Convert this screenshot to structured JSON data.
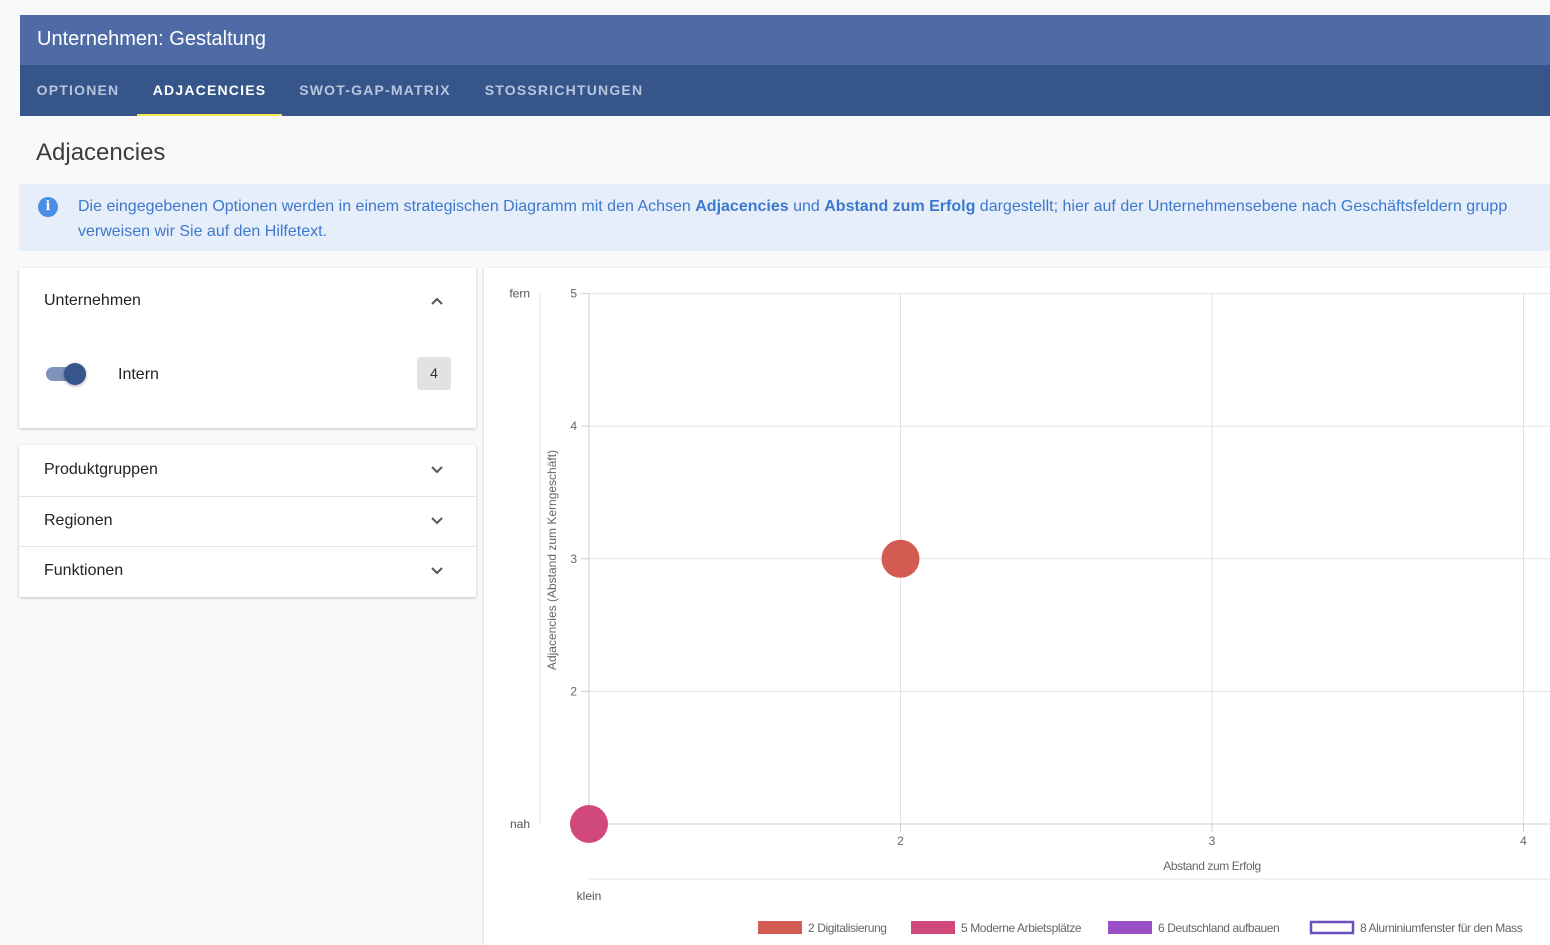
{
  "window": {
    "title": "Unternehmen: Gestaltung"
  },
  "tabs": [
    {
      "label": "OPTIONEN"
    },
    {
      "label": "ADJACENCIES"
    },
    {
      "label": "SWOT-GAP-MATRIX"
    },
    {
      "label": "STOSSRICHTUNGEN"
    }
  ],
  "active_tab": "ADJACENCIES",
  "page_title": "Adjacencies",
  "info": {
    "text1": "Die eingegebenen Optionen werden in einem strategischen Diagramm mit den Achsen ",
    "bold1": "Adjacencies",
    "text2": " und ",
    "bold2": "Abstand zum Erfolg",
    "text3": " dargestellt; hier auf der Unternehmensebene nach Geschäftsfeldern grupp",
    "line2": "verweisen wir Sie auf den Hilfetext."
  },
  "filters": {
    "unternehmen": {
      "label": "Unternehmen",
      "expanded": true,
      "toggle_label": "Intern",
      "toggle_on": true,
      "count": "4"
    },
    "collapsed_panels": [
      {
        "label": "Produktgruppen"
      },
      {
        "label": "Regionen"
      },
      {
        "label": "Funktionen"
      }
    ]
  },
  "colors": {
    "header": "#4f6ba6",
    "tabbar": "#36558a",
    "tab_indicator": "#f3e54c",
    "info_bg": "#e6eef9",
    "info_text": "#3d78cf"
  },
  "chart_data": {
    "type": "bubble",
    "xlabel": "Abstand zum Erfolg",
    "ylabel": "Adjacencies (Abstand zum Kerngeschäft)",
    "xlim": [
      1,
      4
    ],
    "ylim": [
      1,
      5
    ],
    "x_ticks": [
      "2",
      "3",
      "4"
    ],
    "y_ticks": [
      "2",
      "3",
      "4",
      "5"
    ],
    "y_end_labels": {
      "top": "fern",
      "bottom": "nah"
    },
    "x_start_label": "klein",
    "grid": true,
    "legend_position": "bottom",
    "series": [
      {
        "name": "2 Digitalisierung",
        "color": "#d35b52",
        "points": [
          {
            "x": 2,
            "y": 3
          }
        ]
      },
      {
        "name": "5 Moderne Arbietsplätze",
        "color": "#d0497a",
        "points": [
          {
            "x": 1,
            "y": 1
          }
        ]
      },
      {
        "name": "6 Deutschland aufbauen",
        "color": "#9b4fc7",
        "points": []
      },
      {
        "name": "8 Aluminiumfenster für den Mass",
        "color": "#6a4fbf",
        "outline": true,
        "points": []
      }
    ]
  }
}
